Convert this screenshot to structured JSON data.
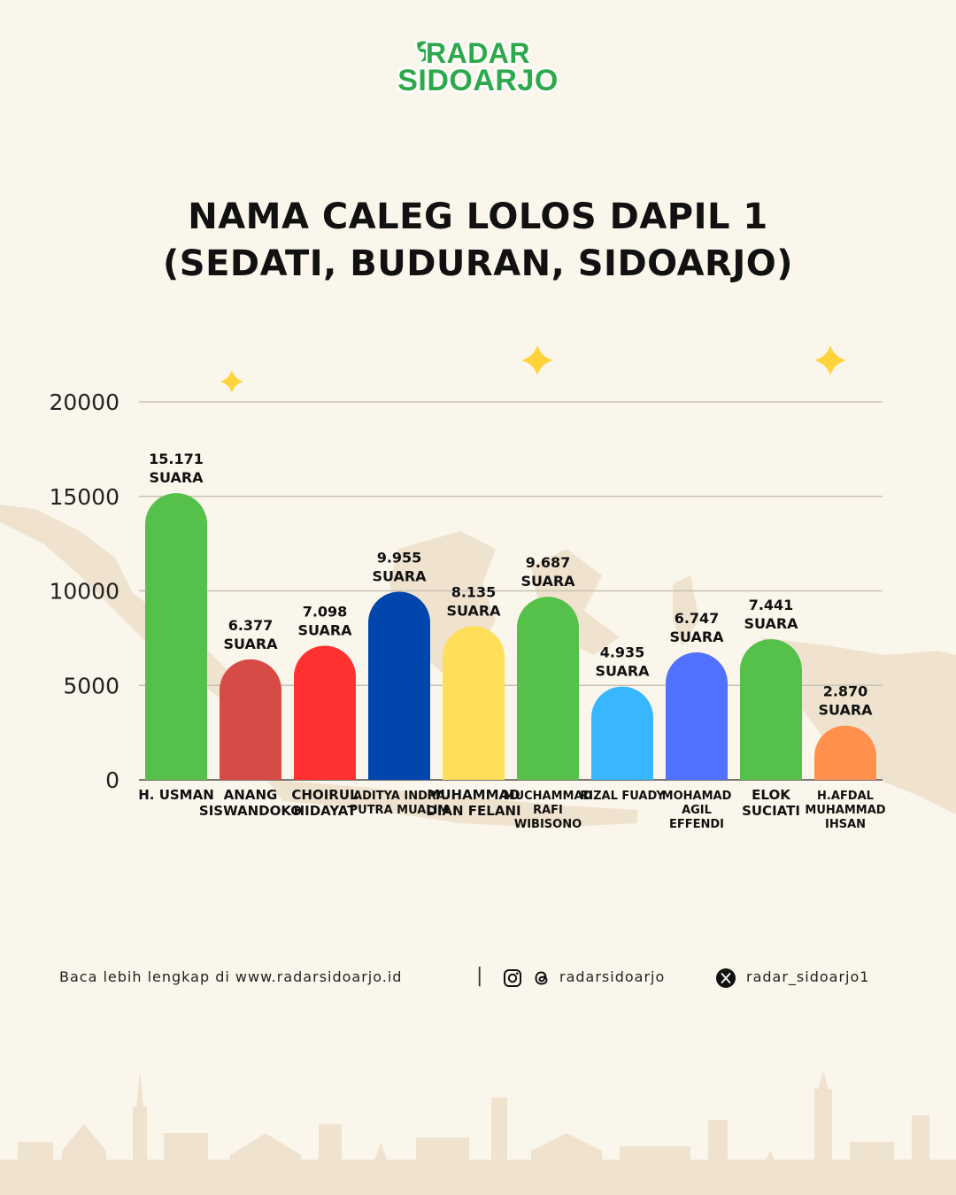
{
  "brand": {
    "line1": "RADAR",
    "line2": "SIDOARJO",
    "color": "#2DA84A"
  },
  "title": {
    "line1": "NAMA CALEG LOLOS DAPIL 1",
    "line2": "(SEDATI, BUDURAN, SIDOARJO)"
  },
  "chart_data": {
    "type": "bar",
    "title": "NAMA CALEG LOLOS DAPIL 1 (SEDATI, BUDURAN, SIDOARJO)",
    "xlabel": "",
    "ylabel": "",
    "ylim": [
      0,
      20000
    ],
    "yticks": [
      "0",
      "5000",
      "10000",
      "15000",
      "20000"
    ],
    "grid": true,
    "categories": [
      [
        "H. USMAN"
      ],
      [
        "ANANG",
        "SISWANDOKO"
      ],
      [
        "CHOIRUL",
        "HIDAYAT"
      ],
      [
        "ADITYA INDRA",
        "PUTRA MUALIM"
      ],
      [
        "MUHAMMAD",
        "DIAN FELANI"
      ],
      [
        "MUCHAMMAD",
        "RAFI",
        "WIBISONO"
      ],
      [
        "RIZAL FUADY"
      ],
      [
        "MOHAMAD",
        "AGIL",
        "EFFENDI"
      ],
      [
        "ELOK",
        "SUCIATI"
      ],
      [
        "H.AFDAL",
        "MUHAMMAD",
        "IHSAN"
      ]
    ],
    "values": [
      15171,
      6377,
      7098,
      9955,
      8135,
      9687,
      4935,
      6747,
      7441,
      2870
    ],
    "value_labels": [
      "15.171",
      "6.377",
      "7.098",
      "9.955",
      "8.135",
      "9.687",
      "4.935",
      "6.747",
      "7.441",
      "2.870"
    ],
    "unit_label": "SUARA",
    "colors": [
      "#55C04A",
      "#D64B45",
      "#FF3131",
      "#0046AD",
      "#FFDE59",
      "#55C04A",
      "#38B6FF",
      "#5271FF",
      "#55C04A",
      "#FF914D"
    ]
  },
  "footer": {
    "web": "Baca lebih lengkap di www.radarsidoarjo.id",
    "separator": "|",
    "instagram_threads": "radarsidoarjo",
    "x": "radar_sidoarjo1",
    "icons": [
      "instagram-icon",
      "threads-icon",
      "x-icon"
    ]
  }
}
